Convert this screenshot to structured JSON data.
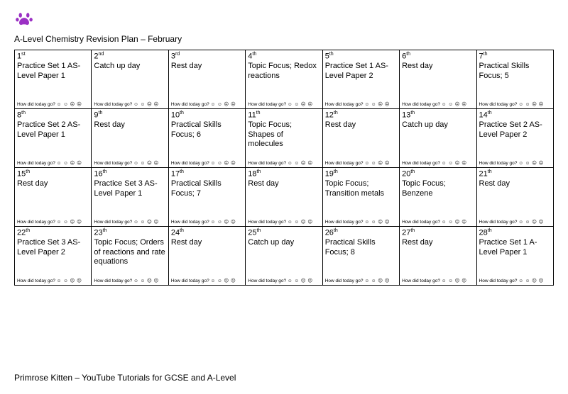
{
  "title": "A-Level Chemistry Revision Plan – February",
  "footer": "Primrose Kitten – YouTube Tutorials for GCSE and A-Level",
  "footer_prompt": "How did today go?",
  "faces": "☺ ☺ ☹ ☹",
  "logo_color": "#9b30c4",
  "days": [
    {
      "num": "1",
      "ord": "st",
      "text": "Practice Set 1 AS-Level Paper 1"
    },
    {
      "num": "2",
      "ord": "nd",
      "text": "Catch up day"
    },
    {
      "num": "3",
      "ord": "rd",
      "text": "Rest day"
    },
    {
      "num": "4",
      "ord": "th",
      "text": "Topic Focus; Redox reactions"
    },
    {
      "num": "5",
      "ord": "th",
      "text": "Practice Set 1 AS-Level Paper 2"
    },
    {
      "num": "6",
      "ord": "th",
      "text": "Rest day"
    },
    {
      "num": "7",
      "ord": "th",
      "text": "Practical Skills Focus; 5"
    },
    {
      "num": "8",
      "ord": "th",
      "text": "Practice Set 2 AS-Level Paper 1"
    },
    {
      "num": "9",
      "ord": "th",
      "text": "Rest day"
    },
    {
      "num": "10",
      "ord": "th",
      "text": "Practical Skills Focus; 6"
    },
    {
      "num": "11",
      "ord": "th",
      "text": "Topic Focus; Shapes of molecules"
    },
    {
      "num": "12",
      "ord": "th",
      "text": "Rest day"
    },
    {
      "num": "13",
      "ord": "th",
      "text": "Catch up day"
    },
    {
      "num": "14",
      "ord": "th",
      "text": "Practice Set 2 AS-Level Paper 2"
    },
    {
      "num": "15",
      "ord": "th",
      "text": "Rest day"
    },
    {
      "num": "16",
      "ord": "th",
      "text": "Practice Set 3 AS-Level Paper 1"
    },
    {
      "num": "17",
      "ord": "th",
      "text": "Practical Skills Focus; 7"
    },
    {
      "num": "18",
      "ord": "th",
      "text": "Rest day"
    },
    {
      "num": "19",
      "ord": "th",
      "text": "Topic Focus; Transition metals"
    },
    {
      "num": "20",
      "ord": "th",
      "text": "Topic Focus; Benzene"
    },
    {
      "num": "21",
      "ord": "th",
      "text": "Rest day"
    },
    {
      "num": "22",
      "ord": "th",
      "text": "Practice Set 3 AS-Level Paper 2"
    },
    {
      "num": "23",
      "ord": "th",
      "text": "Topic Focus; Orders of reactions and rate equations"
    },
    {
      "num": "24",
      "ord": "th",
      "text": "Rest day"
    },
    {
      "num": "25",
      "ord": "th",
      "text": "Catch up day"
    },
    {
      "num": "26",
      "ord": "th",
      "text": "Practical Skills Focus; 8"
    },
    {
      "num": "27",
      "ord": "th",
      "text": "Rest day"
    },
    {
      "num": "28",
      "ord": "th",
      "text": "Practice Set 1 A-Level Paper 1"
    }
  ]
}
